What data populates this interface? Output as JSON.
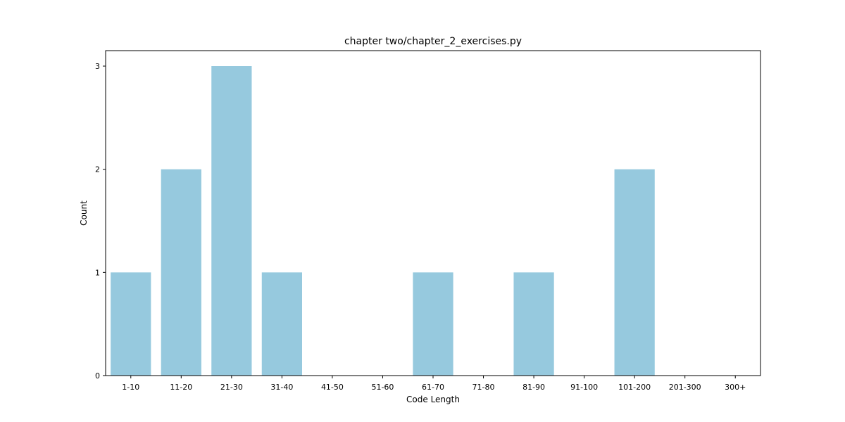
{
  "chart_data": {
    "type": "bar",
    "title": "chapter two/chapter_2_exercises.py",
    "xlabel": "Code Length",
    "ylabel": "Count",
    "categories": [
      "1-10",
      "11-20",
      "21-30",
      "31-40",
      "41-50",
      "51-60",
      "61-70",
      "71-80",
      "81-90",
      "91-100",
      "101-200",
      "201-300",
      "300+"
    ],
    "values": [
      1,
      2,
      3,
      1,
      0,
      0,
      1,
      0,
      1,
      0,
      2,
      0,
      0
    ],
    "ylim": [
      0,
      3.15
    ],
    "yticks": [
      0,
      1,
      2,
      3
    ],
    "bar_color": "#96c9de",
    "grid": false,
    "legend": "none"
  }
}
